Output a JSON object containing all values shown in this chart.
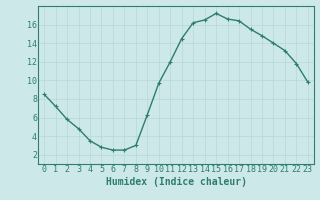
{
  "x": [
    0,
    1,
    2,
    3,
    4,
    5,
    6,
    7,
    8,
    9,
    10,
    11,
    12,
    13,
    14,
    15,
    16,
    17,
    18,
    19,
    20,
    21,
    22,
    23
  ],
  "y": [
    8.5,
    7.2,
    5.8,
    4.8,
    3.5,
    2.8,
    2.5,
    2.5,
    3.0,
    6.3,
    9.7,
    12.0,
    14.5,
    16.2,
    16.5,
    17.2,
    16.6,
    16.4,
    15.5,
    14.8,
    14.0,
    13.2,
    11.8,
    9.8
  ],
  "line_color": "#2e7d6e",
  "marker": "+",
  "marker_size": 3,
  "title": "",
  "xlabel": "Humidex (Indice chaleur)",
  "ylabel": "",
  "xlim": [
    -0.5,
    23.5
  ],
  "ylim": [
    1,
    18
  ],
  "yticks": [
    2,
    4,
    6,
    8,
    10,
    12,
    14,
    16
  ],
  "xticks": [
    0,
    1,
    2,
    3,
    4,
    5,
    6,
    7,
    8,
    9,
    10,
    11,
    12,
    13,
    14,
    15,
    16,
    17,
    18,
    19,
    20,
    21,
    22,
    23
  ],
  "bg_color": "#cce8e8",
  "grid_color": "#b8d8d8",
  "line_width": 1.0,
  "axes_color": "#2e7d6e",
  "tick_label_color": "#2e7d6e",
  "xlabel_color": "#2e7d6e",
  "xlabel_fontsize": 7,
  "tick_fontsize": 6
}
